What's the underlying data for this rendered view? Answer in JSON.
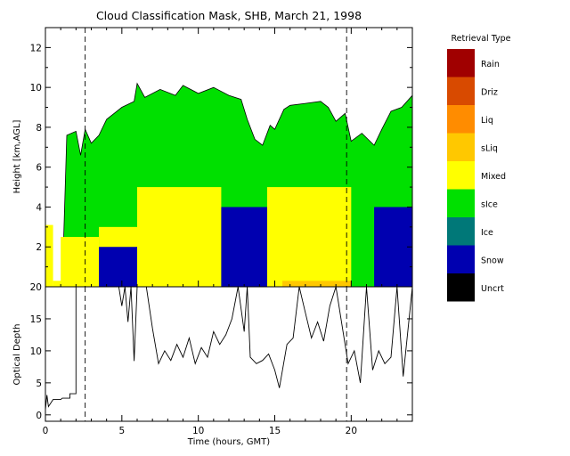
{
  "chart_data": [
    {
      "type": "heatmap",
      "title": "Cloud Classification Mask, SHB, March 21, 1998",
      "xlabel": "",
      "ylabel": "Height [km,AGL]",
      "xlim": [
        0,
        24
      ],
      "ylim": [
        0,
        13
      ],
      "yticks": [
        2,
        4,
        6,
        8,
        10,
        12
      ],
      "grid": false,
      "legend_title": "Retrieval Type",
      "legend_position": "right",
      "legend": [
        {
          "label": "Rain",
          "color": "#a00000"
        },
        {
          "label": "Driz",
          "color": "#d84a00"
        },
        {
          "label": "Liq",
          "color": "#ff8c00"
        },
        {
          "label": "sLiq",
          "color": "#ffc800"
        },
        {
          "label": "Mixed",
          "color": "#ffff00"
        },
        {
          "label": "sIce",
          "color": "#00e000"
        },
        {
          "label": "Ice",
          "color": "#007878"
        },
        {
          "label": "Snow",
          "color": "#0000b0"
        },
        {
          "label": "Uncrt",
          "color": "#000000"
        }
      ],
      "cloud_top_km": [
        [
          1.2,
          2.6
        ],
        [
          1.4,
          7.6
        ],
        [
          2.0,
          7.8
        ],
        [
          2.3,
          6.6
        ],
        [
          2.6,
          7.9
        ],
        [
          3.0,
          7.2
        ],
        [
          3.5,
          7.6
        ],
        [
          4.0,
          8.4
        ],
        [
          5.0,
          9.0
        ],
        [
          5.8,
          9.3
        ],
        [
          6.0,
          10.2
        ],
        [
          6.5,
          9.5
        ],
        [
          7.5,
          9.9
        ],
        [
          8.5,
          9.6
        ],
        [
          9.0,
          10.1
        ],
        [
          10.0,
          9.7
        ],
        [
          11.0,
          10.0
        ],
        [
          12.0,
          9.6
        ],
        [
          12.8,
          9.4
        ],
        [
          13.2,
          8.4
        ],
        [
          13.7,
          7.4
        ],
        [
          14.2,
          7.1
        ],
        [
          14.7,
          8.1
        ],
        [
          15.0,
          7.9
        ],
        [
          15.6,
          8.9
        ],
        [
          16.0,
          9.1
        ],
        [
          17.0,
          9.2
        ],
        [
          18.0,
          9.3
        ],
        [
          18.5,
          9.0
        ],
        [
          19.0,
          8.3
        ],
        [
          19.6,
          8.7
        ],
        [
          20.0,
          7.3
        ],
        [
          20.7,
          7.7
        ],
        [
          21.5,
          7.1
        ],
        [
          22.0,
          7.9
        ],
        [
          22.6,
          8.8
        ],
        [
          23.3,
          9.0
        ],
        [
          24.0,
          9.6
        ]
      ],
      "cells": [
        {
          "class": "Mixed",
          "x": [
            0.0,
            0.5
          ],
          "y": [
            0,
            3.1
          ]
        },
        {
          "class": "Mixed",
          "x": [
            0.5,
            1.9
          ],
          "y": [
            0,
            0.3
          ]
        },
        {
          "class": "Mixed",
          "x": [
            1.0,
            3.5
          ],
          "y": [
            0,
            2.5
          ]
        },
        {
          "class": "Mixed",
          "x": [
            3.5,
            6.0
          ],
          "y": [
            0,
            3.0
          ]
        },
        {
          "class": "Mixed",
          "x": [
            6.0,
            11.5
          ],
          "y": [
            0,
            5.0
          ]
        },
        {
          "class": "Mixed",
          "x": [
            14.5,
            20.0
          ],
          "y": [
            0,
            5.0
          ]
        },
        {
          "class": "sLiq",
          "x": [
            15.5,
            20.0
          ],
          "y": [
            0,
            0.3
          ]
        },
        {
          "class": "Snow",
          "x": [
            3.5,
            6.0
          ],
          "y": [
            0,
            2.0
          ]
        },
        {
          "class": "Snow",
          "x": [
            11.5,
            14.5
          ],
          "y": [
            0,
            4.0
          ]
        },
        {
          "class": "Snow",
          "x": [
            21.5,
            24.0
          ],
          "y": [
            0,
            4.0
          ]
        }
      ],
      "vertical_markers_hours": [
        2.6,
        19.7
      ]
    },
    {
      "type": "line",
      "title": "",
      "xlabel": "Time (hours, GMT)",
      "ylabel": "Optical Depth",
      "xlim": [
        0,
        24
      ],
      "ylim": [
        -1,
        20
      ],
      "xticks": [
        0,
        5,
        10,
        15,
        20
      ],
      "yticks": [
        0,
        5,
        10,
        15,
        20
      ],
      "grid": false,
      "series": [
        {
          "x": [
            0,
            0.1,
            0.2,
            0.5,
            0.8,
            1.0,
            1.1,
            1.6,
            1.6,
            1.8,
            2.0,
            2.0,
            2.6,
            3.0,
            4.0,
            4.8,
            5.0,
            5.2,
            5.4,
            5.6,
            5.8,
            6.0,
            6.2,
            6.6,
            7.0,
            7.4,
            7.8,
            8.2,
            8.6,
            9.0,
            9.4,
            9.8,
            10.2,
            10.6,
            11.0,
            11.4,
            11.8,
            12.2,
            12.6,
            13.0,
            13.2,
            13.4,
            13.8,
            14.2,
            14.6,
            15.0,
            15.3,
            15.8,
            16.2,
            16.6,
            17.0,
            17.4,
            17.8,
            18.2,
            18.6,
            19.0,
            19.4,
            19.8,
            20.2,
            20.6,
            21.0,
            21.4,
            21.8,
            22.2,
            22.6,
            23.0,
            23.4,
            24.0
          ],
          "values": [
            0.8,
            3.1,
            1.3,
            2.4,
            2.4,
            2.4,
            2.6,
            2.6,
            3.3,
            3.3,
            3.3,
            20.0,
            20.0,
            20.0,
            20.0,
            20.0,
            17.0,
            20.0,
            14.5,
            20.0,
            8.4,
            20.0,
            20.0,
            20.0,
            13.5,
            8.0,
            10.0,
            8.5,
            11.0,
            9.0,
            12.0,
            8.0,
            10.5,
            9.0,
            13.0,
            11.0,
            12.5,
            15.0,
            20.0,
            13.0,
            20.0,
            9.0,
            8.0,
            8.5,
            9.5,
            7.0,
            4.2,
            11.0,
            12.0,
            20.0,
            16.0,
            12.0,
            14.5,
            11.5,
            17.0,
            20.0,
            14.0,
            8.0,
            10.0,
            5.0,
            20.0,
            7.0,
            10.0,
            8.0,
            9.0,
            20.0,
            6.0,
            20.0
          ]
        }
      ],
      "vertical_markers_hours": [
        2.6,
        19.7
      ]
    }
  ]
}
